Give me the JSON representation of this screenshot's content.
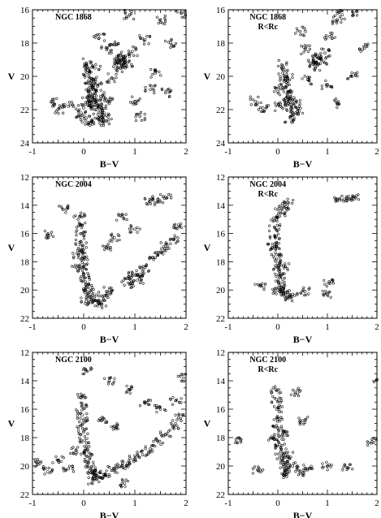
{
  "colors": {
    "ink": "#000000",
    "background": "#ffffff"
  },
  "chart_data": [
    {
      "type": "scatter",
      "title": "NGC 1868",
      "subtitle": "",
      "xlabel": "B−V",
      "ylabel": "V",
      "xlim": [
        -1,
        2
      ],
      "ylim": [
        24,
        16
      ],
      "y_inverted": true,
      "xticklabels": [
        "-1",
        "0",
        "1",
        "2"
      ],
      "yticklabels": [
        "16",
        "18",
        "20",
        "22",
        "24"
      ],
      "series": [
        {
          "values": [
            [
              0.05,
              19.2
            ],
            [
              0.08,
              19.6
            ],
            [
              0.1,
              20.0
            ],
            [
              0.12,
              20.4
            ],
            [
              0.15,
              20.8
            ],
            [
              0.18,
              21.1
            ],
            [
              0.2,
              21.4
            ],
            [
              0.22,
              21.7
            ],
            [
              0.25,
              22.0
            ],
            [
              0.28,
              22.3
            ],
            [
              0.3,
              22.6
            ],
            [
              0.15,
              21.6
            ],
            [
              0.35,
              21.9
            ],
            [
              0.4,
              22.2
            ],
            [
              0.05,
              22.5
            ],
            [
              0.0,
              21.9
            ],
            [
              -0.05,
              22.2
            ],
            [
              0.1,
              22.8
            ],
            [
              0.45,
              22.7
            ],
            [
              0.5,
              21.5
            ],
            [
              0.18,
              20.2
            ],
            [
              0.22,
              19.5
            ],
            [
              0.27,
              20.6
            ],
            [
              0.33,
              21.2
            ],
            [
              0.08,
              21.3
            ],
            [
              0.7,
              19.0
            ],
            [
              0.75,
              19.3
            ],
            [
              0.8,
              18.9
            ],
            [
              0.72,
              19.5
            ],
            [
              0.85,
              19.2
            ],
            [
              0.68,
              19.2
            ],
            [
              0.78,
              18.8
            ],
            [
              0.9,
              16.3
            ],
            [
              1.2,
              17.8
            ],
            [
              1.5,
              16.6
            ],
            [
              1.7,
              18.0
            ],
            [
              1.9,
              16.2
            ],
            [
              0.95,
              18.5
            ],
            [
              1.0,
              21.5
            ],
            [
              1.3,
              20.8
            ],
            [
              -0.3,
              21.8
            ],
            [
              -0.5,
              22.0
            ],
            [
              -0.6,
              21.6
            ],
            [
              1.6,
              21.0
            ],
            [
              0.6,
              18.1
            ],
            [
              1.4,
              19.8
            ],
            [
              0.3,
              17.7
            ],
            [
              0.45,
              18.4
            ],
            [
              0.55,
              20.1
            ],
            [
              1.1,
              22.4
            ]
          ]
        }
      ]
    },
    {
      "type": "scatter",
      "title": "NGC 1868",
      "subtitle": "R<Rc",
      "xlabel": "B−V",
      "ylabel": "V",
      "xlim": [
        -1,
        2
      ],
      "ylim": [
        24,
        16
      ],
      "y_inverted": true,
      "xticklabels": [
        "-1",
        "0",
        "1",
        "2"
      ],
      "yticklabels": [
        "16",
        "18",
        "20",
        "22",
        "24"
      ],
      "series": [
        {
          "values": [
            [
              0.08,
              19.3
            ],
            [
              0.1,
              19.8
            ],
            [
              0.13,
              20.3
            ],
            [
              0.16,
              20.7
            ],
            [
              0.2,
              21.1
            ],
            [
              0.23,
              21.5
            ],
            [
              0.27,
              21.9
            ],
            [
              0.3,
              22.2
            ],
            [
              0.12,
              21.4
            ],
            [
              0.35,
              21.6
            ],
            [
              0.05,
              21.8
            ],
            [
              0.0,
              20.9
            ],
            [
              0.4,
              22.1
            ],
            [
              0.2,
              20.1
            ],
            [
              0.25,
              22.5
            ],
            [
              0.72,
              19.0
            ],
            [
              0.78,
              19.2
            ],
            [
              0.82,
              18.9
            ],
            [
              0.75,
              19.4
            ],
            [
              0.88,
              19.0
            ],
            [
              0.95,
              18.6
            ],
            [
              1.05,
              17.6
            ],
            [
              1.2,
              16.6
            ],
            [
              1.3,
              16.3
            ],
            [
              1.6,
              16.1
            ],
            [
              1.75,
              18.3
            ],
            [
              0.55,
              18.4
            ],
            [
              0.45,
              17.3
            ],
            [
              1.2,
              21.6
            ],
            [
              -0.3,
              21.9
            ],
            [
              -0.45,
              21.5
            ],
            [
              0.6,
              20.2
            ],
            [
              1.0,
              20.5
            ],
            [
              1.5,
              20.0
            ]
          ]
        }
      ]
    },
    {
      "type": "scatter",
      "title": "NGC 2004",
      "subtitle": "",
      "xlabel": "B−V",
      "ylabel": "V",
      "xlim": [
        -1,
        2
      ],
      "ylim": [
        22,
        12
      ],
      "y_inverted": true,
      "xticklabels": [
        "-1",
        "0",
        "1",
        "2"
      ],
      "yticklabels": [
        "12",
        "14",
        "16",
        "18",
        "20",
        "22"
      ],
      "series": [
        {
          "values": [
            [
              -0.08,
              14.8
            ],
            [
              -0.07,
              15.4
            ],
            [
              -0.06,
              16.0
            ],
            [
              -0.05,
              16.6
            ],
            [
              -0.04,
              17.2
            ],
            [
              -0.03,
              17.8
            ],
            [
              -0.02,
              18.4
            ],
            [
              0.0,
              18.9
            ],
            [
              0.03,
              19.4
            ],
            [
              0.06,
              19.8
            ],
            [
              0.1,
              20.2
            ],
            [
              0.15,
              20.5
            ],
            [
              0.2,
              20.7
            ],
            [
              0.28,
              20.9
            ],
            [
              0.35,
              21.0
            ],
            [
              -0.1,
              17.5
            ],
            [
              -0.12,
              18.5
            ],
            [
              0.05,
              20.8
            ],
            [
              0.4,
              20.4
            ],
            [
              0.5,
              20.0
            ],
            [
              0.85,
              19.2
            ],
            [
              0.95,
              19.0
            ],
            [
              1.05,
              19.3
            ],
            [
              0.9,
              19.6
            ],
            [
              1.1,
              18.9
            ],
            [
              1.2,
              18.4
            ],
            [
              1.35,
              17.7
            ],
            [
              1.5,
              17.3
            ],
            [
              1.6,
              16.9
            ],
            [
              1.75,
              16.4
            ],
            [
              1.3,
              13.7
            ],
            [
              1.45,
              13.6
            ],
            [
              1.6,
              13.4
            ],
            [
              0.75,
              14.8
            ],
            [
              -0.4,
              14.3
            ],
            [
              -0.65,
              16.1
            ],
            [
              0.6,
              16.3
            ],
            [
              1.0,
              15.7
            ],
            [
              0.45,
              17.0
            ],
            [
              1.85,
              15.4
            ]
          ]
        }
      ]
    },
    {
      "type": "scatter",
      "title": "NGC 2004",
      "subtitle": "R<Rc",
      "xlabel": "B−V",
      "ylabel": "V",
      "xlim": [
        -1,
        2
      ],
      "ylim": [
        22,
        12
      ],
      "y_inverted": true,
      "xticklabels": [
        "-1",
        "0",
        "1",
        "2"
      ],
      "yticklabels": [
        "12",
        "14",
        "16",
        "18",
        "20",
        "22"
      ],
      "series": [
        {
          "values": [
            [
              -0.08,
              14.9
            ],
            [
              -0.06,
              15.6
            ],
            [
              -0.05,
              16.3
            ],
            [
              -0.04,
              16.9
            ],
            [
              -0.03,
              17.5
            ],
            [
              -0.01,
              18.1
            ],
            [
              0.01,
              18.6
            ],
            [
              0.03,
              19.1
            ],
            [
              0.06,
              19.5
            ],
            [
              0.1,
              19.9
            ],
            [
              0.15,
              20.2
            ],
            [
              0.2,
              20.5
            ],
            [
              -0.12,
              17.0
            ],
            [
              0.12,
              18.3
            ],
            [
              0.0,
              20.0
            ],
            [
              0.3,
              20.3
            ],
            [
              0.05,
              14.5
            ],
            [
              0.12,
              14.1
            ],
            [
              0.2,
              13.8
            ],
            [
              1.25,
              13.6
            ],
            [
              1.4,
              13.5
            ],
            [
              1.55,
              13.4
            ],
            [
              1.02,
              19.5
            ],
            [
              1.0,
              20.3
            ],
            [
              0.55,
              20.1
            ],
            [
              -0.35,
              19.7
            ]
          ]
        }
      ]
    },
    {
      "type": "scatter",
      "title": "NGC 2100",
      "subtitle": "",
      "xlabel": "B−V",
      "ylabel": "V",
      "xlim": [
        -1,
        2
      ],
      "ylim": [
        22,
        12
      ],
      "y_inverted": true,
      "xticklabels": [
        "-1",
        "0",
        "1",
        "2"
      ],
      "yticklabels": [
        "12",
        "14",
        "16",
        "18",
        "20",
        "22"
      ],
      "series": [
        {
          "values": [
            [
              -0.05,
              15.2
            ],
            [
              -0.04,
              15.8
            ],
            [
              -0.03,
              16.4
            ],
            [
              -0.02,
              17.0
            ],
            [
              0.0,
              17.6
            ],
            [
              0.02,
              18.2
            ],
            [
              0.04,
              18.8
            ],
            [
              0.06,
              19.3
            ],
            [
              0.09,
              19.8
            ],
            [
              0.13,
              20.2
            ],
            [
              0.18,
              20.5
            ],
            [
              0.25,
              20.7
            ],
            [
              0.32,
              20.8
            ],
            [
              0.4,
              20.6
            ],
            [
              0.55,
              20.3
            ],
            [
              0.7,
              20.0
            ],
            [
              0.85,
              19.8
            ],
            [
              1.0,
              19.5
            ],
            [
              1.15,
              19.2
            ],
            [
              1.3,
              18.8
            ],
            [
              1.45,
              18.3
            ],
            [
              1.6,
              17.8
            ],
            [
              1.75,
              17.2
            ],
            [
              1.85,
              16.6
            ],
            [
              -0.3,
              20.2
            ],
            [
              -0.5,
              19.6
            ],
            [
              -0.7,
              20.4
            ],
            [
              -0.85,
              19.8
            ],
            [
              0.05,
              13.3
            ],
            [
              0.5,
              14.0
            ],
            [
              0.9,
              14.6
            ],
            [
              1.2,
              15.5
            ],
            [
              1.5,
              16.0
            ],
            [
              1.8,
              15.4
            ],
            [
              1.95,
              13.8
            ],
            [
              0.35,
              16.8
            ],
            [
              0.6,
              17.2
            ],
            [
              -0.15,
              18.9
            ],
            [
              0.2,
              21.0
            ],
            [
              0.8,
              21.2
            ]
          ]
        }
      ]
    },
    {
      "type": "scatter",
      "title": "NGC 2100",
      "subtitle": "R<Rc",
      "xlabel": "B−V",
      "ylabel": "V",
      "xlim": [
        -1,
        2
      ],
      "ylim": [
        22,
        12
      ],
      "y_inverted": true,
      "xticklabels": [
        "-1",
        "0",
        "1",
        "2"
      ],
      "yticklabels": [
        "12",
        "14",
        "16",
        "18",
        "20",
        "22"
      ],
      "series": [
        {
          "values": [
            [
              -0.04,
              14.6
            ],
            [
              -0.03,
              15.3
            ],
            [
              -0.02,
              16.0
            ],
            [
              -0.01,
              16.7
            ],
            [
              0.0,
              17.3
            ],
            [
              0.02,
              17.9
            ],
            [
              0.04,
              18.5
            ],
            [
              0.06,
              19.0
            ],
            [
              0.08,
              19.5
            ],
            [
              0.11,
              19.9
            ],
            [
              0.14,
              20.3
            ],
            [
              0.18,
              20.6
            ],
            [
              -0.08,
              18.1
            ],
            [
              0.12,
              17.6
            ],
            [
              0.2,
              19.3
            ],
            [
              0.3,
              20.0
            ],
            [
              0.45,
              20.4
            ],
            [
              0.6,
              20.2
            ],
            [
              1.0,
              20.0
            ],
            [
              1.4,
              20.1
            ],
            [
              1.9,
              18.3
            ],
            [
              2.0,
              13.9
            ],
            [
              -0.4,
              20.3
            ],
            [
              -0.75,
              18.2
            ],
            [
              0.35,
              14.8
            ],
            [
              0.5,
              16.8
            ]
          ]
        }
      ]
    }
  ]
}
